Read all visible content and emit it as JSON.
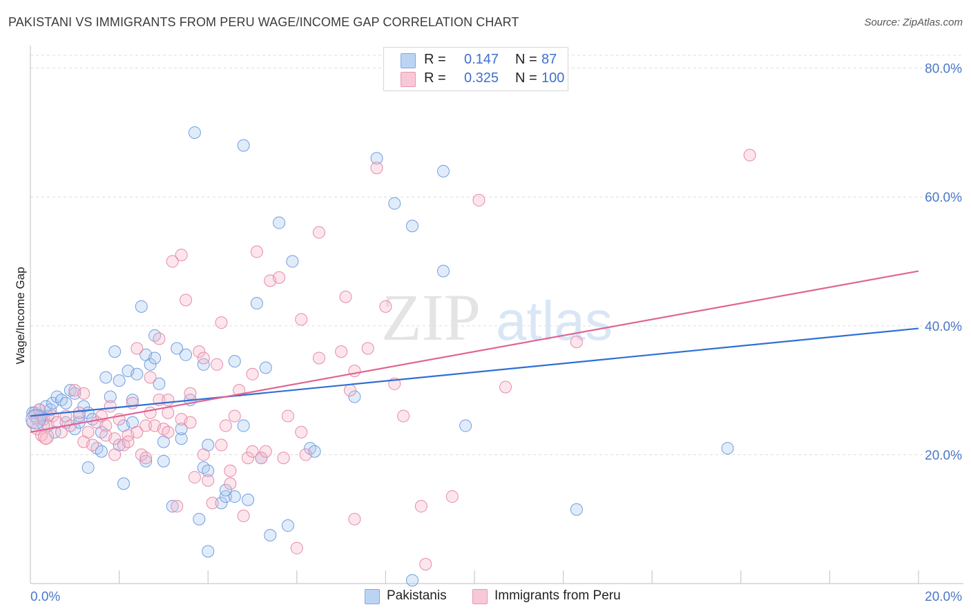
{
  "title": "PAKISTANI VS IMMIGRANTS FROM PERU WAGE/INCOME GAP CORRELATION CHART",
  "source": "Source: ZipAtlas.com",
  "watermark": {
    "zip": "ZIP",
    "atlas": "atlas"
  },
  "legend": {
    "r_label": "R =",
    "n_label": "N =",
    "series": [
      {
        "name": "Pakistanis",
        "r": "0.147",
        "n": "87",
        "fill": "#a9c8f0",
        "stroke": "#6f9de0"
      },
      {
        "name": "Immigrants from Peru",
        "r": "0.325",
        "n": "100",
        "fill": "#f6b7c9",
        "stroke": "#e58aa8"
      }
    ]
  },
  "chart_data": {
    "type": "scatter",
    "title": "PAKISTANI VS IMMIGRANTS FROM PERU WAGE/INCOME GAP CORRELATION CHART",
    "xlabel": "",
    "ylabel": "Wage/Income Gap",
    "xlim": [
      0,
      20
    ],
    "ylim": [
      0,
      82
    ],
    "x_tick_labels": [
      "0.0%",
      "20.0%"
    ],
    "y_ticks": [
      20,
      40,
      60,
      80
    ],
    "y_tick_labels": [
      "20.0%",
      "40.0%",
      "60.0%",
      "80.0%"
    ],
    "grid": true,
    "legend_position": "top-center",
    "series": [
      {
        "name": "Pakistanis",
        "color": "#6f9de0",
        "line_color": "#2f6fd4",
        "trend": {
          "x": [
            0,
            20
          ],
          "y": [
            26.0,
            39.6
          ]
        },
        "points": [
          [
            0.1,
            26.5
          ],
          [
            0.15,
            25.5
          ],
          [
            0.2,
            27.0
          ],
          [
            0.25,
            26.0
          ],
          [
            0.3,
            24.5
          ],
          [
            0.35,
            27.5
          ],
          [
            0.4,
            26.0
          ],
          [
            0.45,
            27.0
          ],
          [
            0.5,
            28.0
          ],
          [
            0.6,
            29.0
          ],
          [
            0.7,
            28.5
          ],
          [
            0.8,
            25.0
          ],
          [
            0.9,
            30.0
          ],
          [
            1.0,
            29.5
          ],
          [
            1.0,
            24.0
          ],
          [
            1.1,
            25.0
          ],
          [
            1.2,
            27.5
          ],
          [
            1.3,
            26.5
          ],
          [
            1.3,
            18.0
          ],
          [
            1.4,
            25.5
          ],
          [
            1.5,
            21.0
          ],
          [
            1.6,
            20.5
          ],
          [
            1.7,
            32.0
          ],
          [
            1.8,
            29.0
          ],
          [
            1.9,
            36.0
          ],
          [
            2.0,
            31.5
          ],
          [
            2.0,
            21.5
          ],
          [
            2.1,
            15.5
          ],
          [
            2.1,
            24.5
          ],
          [
            2.2,
            33.0
          ],
          [
            2.3,
            25.0
          ],
          [
            2.3,
            28.5
          ],
          [
            2.4,
            32.5
          ],
          [
            2.5,
            43.0
          ],
          [
            2.6,
            19.0
          ],
          [
            2.6,
            35.5
          ],
          [
            2.7,
            34.0
          ],
          [
            2.8,
            38.5
          ],
          [
            2.8,
            35.0
          ],
          [
            2.9,
            31.0
          ],
          [
            3.0,
            22.0
          ],
          [
            3.0,
            19.0
          ],
          [
            3.2,
            12.0
          ],
          [
            3.3,
            36.5
          ],
          [
            3.4,
            22.5
          ],
          [
            3.4,
            24.0
          ],
          [
            3.5,
            35.5
          ],
          [
            3.6,
            28.5
          ],
          [
            3.7,
            70.0
          ],
          [
            3.8,
            10.0
          ],
          [
            3.9,
            18.0
          ],
          [
            3.9,
            34.0
          ],
          [
            4.0,
            17.5
          ],
          [
            4.0,
            21.5
          ],
          [
            4.0,
            5.0
          ],
          [
            4.3,
            12.5
          ],
          [
            4.4,
            13.5
          ],
          [
            4.4,
            14.5
          ],
          [
            4.6,
            34.5
          ],
          [
            4.6,
            13.5
          ],
          [
            4.8,
            24.5
          ],
          [
            4.8,
            68.0
          ],
          [
            4.9,
            13.0
          ],
          [
            5.1,
            43.5
          ],
          [
            5.2,
            19.5
          ],
          [
            5.3,
            33.5
          ],
          [
            5.4,
            7.5
          ],
          [
            5.6,
            56.0
          ],
          [
            5.8,
            9.0
          ],
          [
            5.9,
            50.0
          ],
          [
            6.3,
            21.0
          ],
          [
            6.4,
            20.5
          ],
          [
            7.3,
            29.0
          ],
          [
            7.8,
            66.0
          ],
          [
            8.2,
            59.0
          ],
          [
            8.6,
            55.5
          ],
          [
            8.6,
            0.5
          ],
          [
            9.3,
            48.5
          ],
          [
            9.3,
            64.0
          ],
          [
            9.8,
            24.5
          ],
          [
            12.3,
            11.5
          ],
          [
            15.7,
            21.0
          ],
          [
            0.05,
            26.5
          ],
          [
            0.55,
            23.5
          ],
          [
            1.1,
            26.0
          ],
          [
            0.8,
            28.0
          ],
          [
            1.6,
            23.5
          ]
        ]
      },
      {
        "name": "Immigrants from Peru",
        "color": "#e58aa8",
        "line_color": "#e06493",
        "trend": {
          "x": [
            0,
            20
          ],
          "y": [
            23.5,
            48.5
          ]
        },
        "points": [
          [
            0.05,
            25.0
          ],
          [
            0.1,
            26.0
          ],
          [
            0.15,
            24.0
          ],
          [
            0.2,
            27.0
          ],
          [
            0.25,
            23.0
          ],
          [
            0.3,
            25.5
          ],
          [
            0.4,
            24.5
          ],
          [
            0.5,
            26.0
          ],
          [
            0.6,
            25.0
          ],
          [
            0.7,
            23.5
          ],
          [
            0.8,
            26.0
          ],
          [
            0.9,
            24.5
          ],
          [
            1.0,
            30.0
          ],
          [
            1.1,
            26.5
          ],
          [
            1.2,
            22.0
          ],
          [
            1.3,
            23.5
          ],
          [
            1.4,
            21.5
          ],
          [
            1.5,
            25.0
          ],
          [
            1.6,
            26.0
          ],
          [
            1.7,
            24.5
          ],
          [
            1.7,
            23.0
          ],
          [
            1.8,
            27.5
          ],
          [
            1.9,
            20.0
          ],
          [
            1.9,
            22.5
          ],
          [
            2.0,
            25.5
          ],
          [
            2.1,
            21.5
          ],
          [
            2.2,
            23.0
          ],
          [
            2.2,
            22.0
          ],
          [
            2.3,
            28.0
          ],
          [
            2.4,
            23.5
          ],
          [
            2.4,
            36.5
          ],
          [
            2.5,
            20.0
          ],
          [
            2.6,
            24.5
          ],
          [
            2.6,
            19.5
          ],
          [
            2.7,
            32.0
          ],
          [
            2.7,
            26.5
          ],
          [
            2.8,
            24.5
          ],
          [
            2.9,
            38.0
          ],
          [
            2.9,
            28.5
          ],
          [
            3.0,
            24.0
          ],
          [
            3.1,
            26.5
          ],
          [
            3.1,
            23.5
          ],
          [
            3.1,
            28.5
          ],
          [
            3.2,
            50.0
          ],
          [
            3.3,
            12.0
          ],
          [
            3.4,
            25.5
          ],
          [
            3.4,
            51.0
          ],
          [
            3.5,
            44.0
          ],
          [
            3.6,
            29.5
          ],
          [
            3.6,
            25.0
          ],
          [
            3.7,
            16.5
          ],
          [
            3.8,
            36.0
          ],
          [
            3.9,
            35.0
          ],
          [
            3.9,
            20.0
          ],
          [
            4.0,
            16.0
          ],
          [
            4.1,
            12.5
          ],
          [
            4.2,
            34.0
          ],
          [
            4.3,
            21.5
          ],
          [
            4.3,
            40.5
          ],
          [
            4.4,
            24.5
          ],
          [
            4.5,
            17.5
          ],
          [
            4.5,
            15.5
          ],
          [
            4.6,
            26.0
          ],
          [
            4.7,
            30.0
          ],
          [
            4.8,
            10.5
          ],
          [
            4.9,
            19.5
          ],
          [
            5.0,
            20.5
          ],
          [
            5.0,
            32.5
          ],
          [
            5.1,
            51.5
          ],
          [
            5.2,
            19.5
          ],
          [
            5.3,
            20.5
          ],
          [
            5.4,
            47.0
          ],
          [
            5.6,
            47.5
          ],
          [
            5.7,
            19.5
          ],
          [
            5.8,
            26.0
          ],
          [
            6.0,
            5.5
          ],
          [
            6.1,
            23.5
          ],
          [
            6.1,
            41.0
          ],
          [
            6.2,
            20.0
          ],
          [
            6.5,
            54.5
          ],
          [
            6.5,
            35.0
          ],
          [
            7.0,
            36.0
          ],
          [
            7.1,
            44.5
          ],
          [
            7.2,
            30.0
          ],
          [
            7.3,
            33.0
          ],
          [
            7.3,
            10.0
          ],
          [
            7.6,
            36.5
          ],
          [
            7.8,
            64.5
          ],
          [
            8.0,
            43.0
          ],
          [
            8.2,
            31.0
          ],
          [
            8.4,
            26.0
          ],
          [
            8.9,
            3.0
          ],
          [
            8.8,
            12.0
          ],
          [
            9.5,
            13.5
          ],
          [
            10.1,
            59.5
          ],
          [
            10.7,
            30.5
          ],
          [
            12.3,
            37.5
          ],
          [
            16.2,
            66.5
          ],
          [
            1.2,
            29.5
          ],
          [
            0.35,
            22.5
          ]
        ]
      }
    ]
  }
}
